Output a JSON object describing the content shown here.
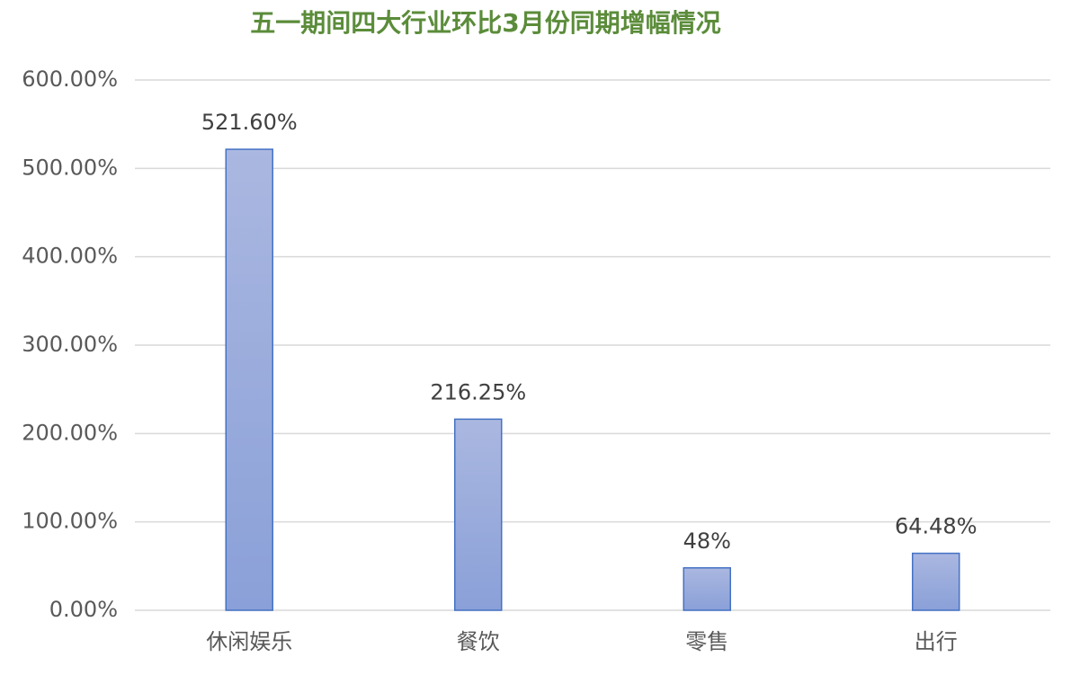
{
  "chart_data": {
    "type": "bar",
    "title": "五一期间四大行业环比3月份同期增幅情况",
    "categories": [
      "休闲娱乐",
      "餐饮",
      "零售",
      "出行"
    ],
    "values": [
      521.6,
      216.25,
      48,
      64.48
    ],
    "value_labels": [
      "521.60%",
      "216.25%",
      "48%",
      "64.48%"
    ],
    "color": "#4472c4",
    "ylim": [
      0,
      600
    ],
    "yticks": [
      {
        "value": 0,
        "label": "0.00%"
      },
      {
        "value": 100,
        "label": "100.00%"
      },
      {
        "value": 200,
        "label": "200.00%"
      },
      {
        "value": 300,
        "label": "300.00%"
      },
      {
        "value": 400,
        "label": "400.00%"
      },
      {
        "value": 500,
        "label": "500.00%"
      },
      {
        "value": 600,
        "label": "600.00%"
      }
    ],
    "grid": true
  }
}
